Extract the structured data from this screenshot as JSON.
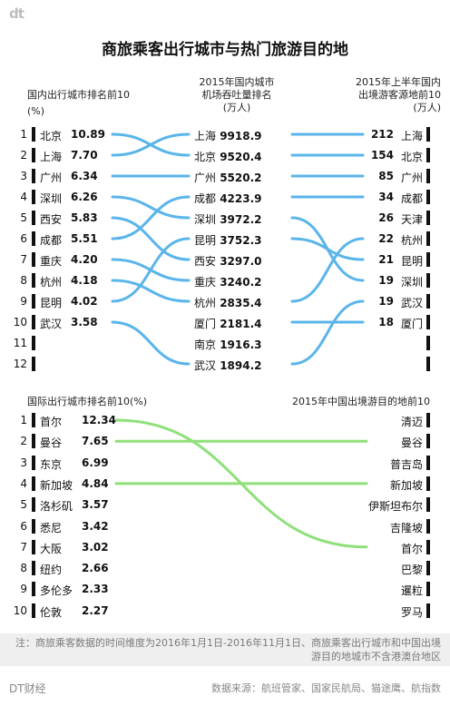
{
  "logo": "dt",
  "title": "商旅乘客出行城市与热门旅游目的地",
  "headers": {
    "domestic_outbound_line1": "国内出行城市排名前10",
    "domestic_outbound_line2": "(%)",
    "airport_line1": "2015年国内城市",
    "airport_line2": "机场吞吐量排名",
    "airport_line3": "(万人)",
    "tourist_source_line1": "2015年上半年国内",
    "tourist_source_line2": "出境游客源地前10",
    "tourist_source_line3": "(万人)",
    "intl_outbound": "国际出行城市排名前10(%)",
    "intl_dest": "2015年中国出境游目的地前10"
  },
  "chart_data": [
    {
      "type": "table",
      "title": "国内出行城市排名前10",
      "ranks": [
        "1",
        "2",
        "3",
        "4",
        "5",
        "6",
        "7",
        "8",
        "9",
        "10",
        "11",
        "12"
      ],
      "domestic_outbound": [
        {
          "rank": 1,
          "city": "北京",
          "value": "10.89"
        },
        {
          "rank": 2,
          "city": "上海",
          "value": "7.70"
        },
        {
          "rank": 3,
          "city": "广州",
          "value": "6.34"
        },
        {
          "rank": 4,
          "city": "深圳",
          "value": "6.26"
        },
        {
          "rank": 5,
          "city": "西安",
          "value": "5.83"
        },
        {
          "rank": 6,
          "city": "成都",
          "value": "5.51"
        },
        {
          "rank": 7,
          "city": "重庆",
          "value": "4.20"
        },
        {
          "rank": 8,
          "city": "杭州",
          "value": "4.18"
        },
        {
          "rank": 9,
          "city": "昆明",
          "value": "4.02"
        },
        {
          "rank": 10,
          "city": "武汉",
          "value": "3.58"
        }
      ],
      "airport_throughput": [
        {
          "rank": 1,
          "city": "上海",
          "value": "9918.9"
        },
        {
          "rank": 2,
          "city": "北京",
          "value": "9520.4"
        },
        {
          "rank": 3,
          "city": "广州",
          "value": "5520.2"
        },
        {
          "rank": 4,
          "city": "成都",
          "value": "4223.9"
        },
        {
          "rank": 5,
          "city": "深圳",
          "value": "3972.2"
        },
        {
          "rank": 6,
          "city": "昆明",
          "value": "3752.3"
        },
        {
          "rank": 7,
          "city": "西安",
          "value": "3297.0"
        },
        {
          "rank": 8,
          "city": "重庆",
          "value": "3240.2"
        },
        {
          "rank": 9,
          "city": "杭州",
          "value": "2835.4"
        },
        {
          "rank": 10,
          "city": "厦门",
          "value": "2181.4"
        },
        {
          "rank": 11,
          "city": "南京",
          "value": "1916.3"
        },
        {
          "rank": 12,
          "city": "武汉",
          "value": "1894.2"
        }
      ],
      "tourist_source": [
        {
          "rank": 1,
          "city": "上海",
          "value": "212"
        },
        {
          "rank": 2,
          "city": "北京",
          "value": "154"
        },
        {
          "rank": 3,
          "city": "广州",
          "value": "85"
        },
        {
          "rank": 4,
          "city": "成都",
          "value": "34"
        },
        {
          "rank": 5,
          "city": "天津",
          "value": "26"
        },
        {
          "rank": 6,
          "city": "杭州",
          "value": "22"
        },
        {
          "rank": 7,
          "city": "昆明",
          "value": "21"
        },
        {
          "rank": 8,
          "city": "深圳",
          "value": "19"
        },
        {
          "rank": 9,
          "city": "武汉",
          "value": "19"
        },
        {
          "rank": 10,
          "city": "厦门",
          "value": "18"
        }
      ],
      "links_left_mid": [
        [
          1,
          2
        ],
        [
          2,
          1
        ],
        [
          3,
          3
        ],
        [
          4,
          5
        ],
        [
          5,
          7
        ],
        [
          6,
          4
        ],
        [
          7,
          8
        ],
        [
          8,
          9
        ],
        [
          9,
          6
        ],
        [
          10,
          12
        ]
      ],
      "links_mid_right": [
        [
          1,
          1
        ],
        [
          2,
          2
        ],
        [
          3,
          3
        ],
        [
          4,
          4
        ],
        [
          5,
          8
        ],
        [
          6,
          7
        ],
        [
          9,
          6
        ],
        [
          10,
          10
        ],
        [
          12,
          9
        ]
      ],
      "line_color": "#5ab5ea"
    },
    {
      "type": "table",
      "title": "国际出行城市排名前10(%)",
      "ranks": [
        "1",
        "2",
        "3",
        "4",
        "5",
        "6",
        "7",
        "8",
        "9",
        "10"
      ],
      "intl_outbound": [
        {
          "rank": 1,
          "city": "首尔",
          "value": "12.34"
        },
        {
          "rank": 2,
          "city": "曼谷",
          "value": "7.65"
        },
        {
          "rank": 3,
          "city": "东京",
          "value": "6.99"
        },
        {
          "rank": 4,
          "city": "新加坡",
          "value": "4.84"
        },
        {
          "rank": 5,
          "city": "洛杉矶",
          "value": "3.57"
        },
        {
          "rank": 6,
          "city": "悉尼",
          "value": "3.42"
        },
        {
          "rank": 7,
          "city": "大阪",
          "value": "3.02"
        },
        {
          "rank": 8,
          "city": "纽约",
          "value": "2.66"
        },
        {
          "rank": 9,
          "city": "多伦多",
          "value": "2.33"
        },
        {
          "rank": 10,
          "city": "伦敦",
          "value": "2.27"
        }
      ],
      "intl_dest": [
        {
          "rank": 1,
          "city": "清迈"
        },
        {
          "rank": 2,
          "city": "曼谷"
        },
        {
          "rank": 3,
          "city": "普吉岛"
        },
        {
          "rank": 4,
          "city": "新加坡"
        },
        {
          "rank": 5,
          "city": "伊斯坦布尔"
        },
        {
          "rank": 6,
          "city": "吉隆坡"
        },
        {
          "rank": 7,
          "city": "首尔"
        },
        {
          "rank": 8,
          "city": "巴黎"
        },
        {
          "rank": 9,
          "city": "暹粒"
        },
        {
          "rank": 10,
          "city": "罗马"
        }
      ],
      "links": [
        [
          1,
          7
        ],
        [
          2,
          2
        ],
        [
          4,
          4
        ]
      ],
      "line_color": "#8fe07a"
    }
  ],
  "note": "注：商旅乘客数据的时间维度为2016年1月1日-2016年11月1日、商旅乘客出行城市和中国出境游目的地城市不含港澳台地区",
  "footer": {
    "brand": "DT财经",
    "source": "数据来源：航班管家、国家民航局、猫途鹰、航指数"
  }
}
